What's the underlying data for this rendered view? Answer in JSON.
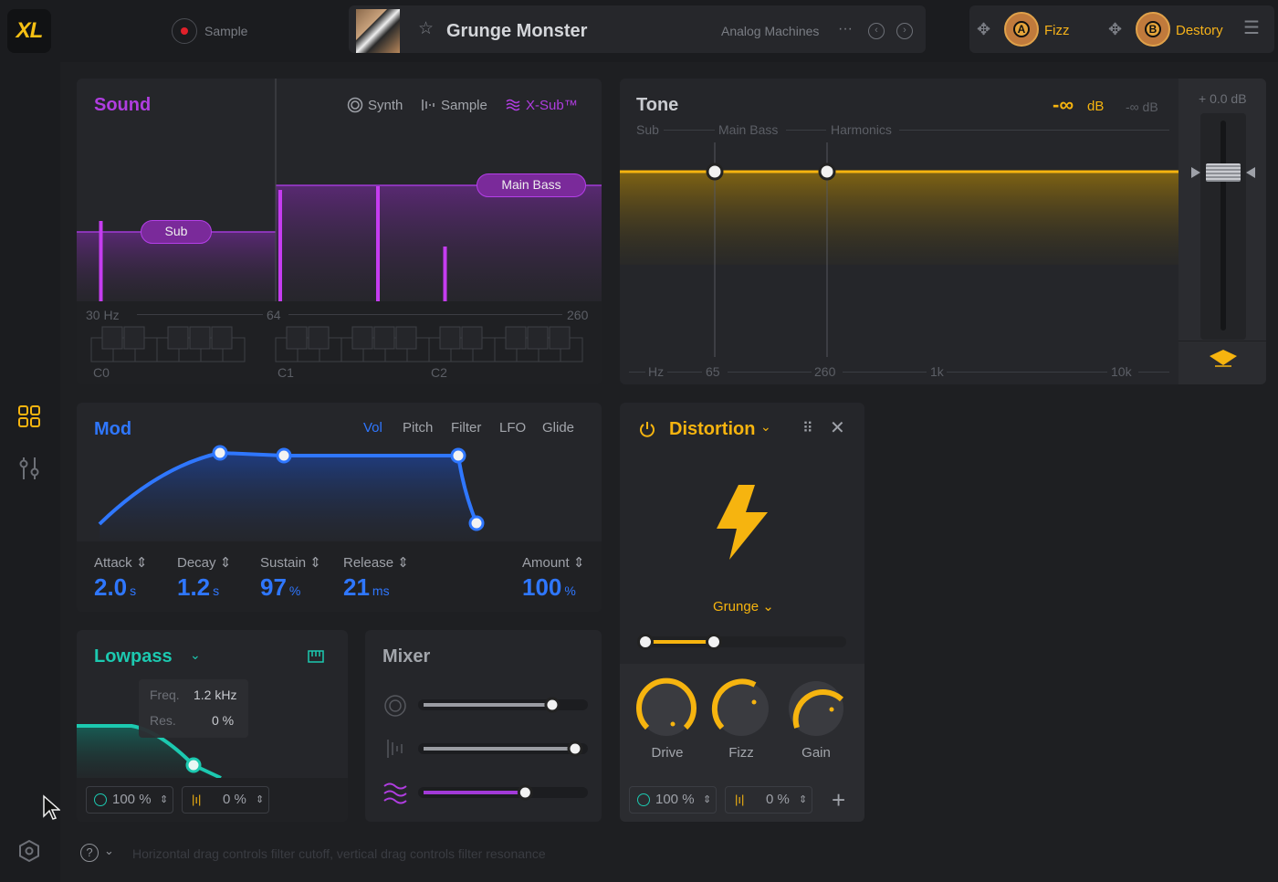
{
  "app": {
    "logo": "XL"
  },
  "topbar": {
    "record_label": "Sample",
    "preset_name": "Grunge Monster",
    "preset_category": "Analog Machines",
    "more": "···",
    "slot_a": {
      "letter": "A",
      "name": "Fizz"
    },
    "slot_b": {
      "letter": "B",
      "name": "Destory"
    }
  },
  "sound": {
    "title": "Sound",
    "tabs": [
      {
        "label": "Synth",
        "icon": "circle-icon"
      },
      {
        "label": "Sample",
        "icon": "waveform-icon"
      },
      {
        "label": "X-Sub™",
        "icon": "waves-icon",
        "active": true
      }
    ],
    "tags": {
      "sub": "Sub",
      "main_bass": "Main Bass"
    },
    "freq_labels": [
      "30 Hz",
      "64",
      "260"
    ],
    "octave_labels": [
      "C0",
      "C1",
      "C2"
    ]
  },
  "tone": {
    "title": "Tone",
    "db_primary": "-∞",
    "db_unit": "dB",
    "db_secondary": "-∞ dB",
    "bands": [
      "Sub",
      "Main Bass",
      "Harmonics"
    ],
    "freq_labels": [
      "Hz",
      "65",
      "260",
      "1k",
      "10k"
    ],
    "gain_readout": "+ 0.0 dB"
  },
  "mod": {
    "title": "Mod",
    "tabs": [
      "Vol",
      "Pitch",
      "Filter",
      "LFO",
      "Glide"
    ],
    "active_tab": "Vol",
    "params": [
      {
        "label": "Attack",
        "value": "2.0",
        "unit": "s"
      },
      {
        "label": "Decay",
        "value": "1.2",
        "unit": "s"
      },
      {
        "label": "Sustain",
        "value": "97",
        "unit": "%"
      },
      {
        "label": "Release",
        "value": "21",
        "unit": "ms"
      },
      {
        "label": "Amount",
        "value": "100",
        "unit": "%"
      }
    ]
  },
  "lowpass": {
    "title": "Lowpass",
    "freq_label": "Freq.",
    "freq_value": "1.2 kHz",
    "res_label": "Res.",
    "res_value": "0 %",
    "mix_value": "100 %",
    "pan_value": "0 %"
  },
  "mixer": {
    "title": "Mixer",
    "levels": [
      0.81,
      1.0,
      0.64
    ],
    "colors": [
      "#9a9ca2",
      "#9a9ca2",
      "#a23ad8"
    ]
  },
  "distortion": {
    "title": "Distortion",
    "type": "Grunge",
    "knobs": [
      {
        "label": "Drive"
      },
      {
        "label": "Fizz"
      },
      {
        "label": "Gain"
      }
    ],
    "mix_value": "100 %",
    "pan_value": "0 %"
  },
  "footer": {
    "hint": "Horizontal drag controls filter cutoff, vertical drag controls filter resonance"
  },
  "colors": {
    "purple": "#b03de0",
    "yellow": "#f6b40f",
    "blue": "#2f77ff",
    "teal": "#1cc9b0"
  }
}
